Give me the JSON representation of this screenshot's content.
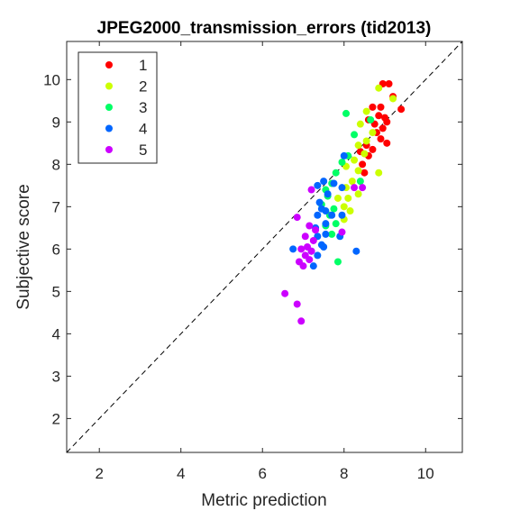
{
  "chart_data": {
    "type": "scatter",
    "title": "JPEG2000_transmission_errors (tid2013)",
    "xlabel": "Metric prediction",
    "ylabel": "Subjective score",
    "xlim": [
      1.2,
      10.9
    ],
    "ylim": [
      1.2,
      10.9
    ],
    "xticks": [
      2,
      4,
      6,
      8,
      10
    ],
    "yticks": [
      2,
      3,
      4,
      5,
      6,
      7,
      8,
      9,
      10
    ],
    "grid": false,
    "legend_position": "top-left",
    "reference_line": "diagonal y = x (dashed)",
    "series": [
      {
        "name": "1",
        "color": "#ff0000",
        "points": [
          [
            8.95,
            9.9
          ],
          [
            9.1,
            9.9
          ],
          [
            9.2,
            9.6
          ],
          [
            9.4,
            9.3
          ],
          [
            8.9,
            9.35
          ],
          [
            8.7,
            9.35
          ],
          [
            9.0,
            9.1
          ],
          [
            8.85,
            9.15
          ],
          [
            9.05,
            9.0
          ],
          [
            8.6,
            9.05
          ],
          [
            8.75,
            8.95
          ],
          [
            8.95,
            8.85
          ],
          [
            8.8,
            8.75
          ],
          [
            8.9,
            8.6
          ],
          [
            9.05,
            8.5
          ],
          [
            8.55,
            8.45
          ],
          [
            8.7,
            8.35
          ],
          [
            8.4,
            8.3
          ],
          [
            8.6,
            8.2
          ],
          [
            8.45,
            8.0
          ],
          [
            8.5,
            7.8
          ]
        ]
      },
      {
        "name": "2",
        "color": "#ccff00",
        "points": [
          [
            8.85,
            9.8
          ],
          [
            8.55,
            9.25
          ],
          [
            8.4,
            8.95
          ],
          [
            8.7,
            8.75
          ],
          [
            8.55,
            8.55
          ],
          [
            8.35,
            8.45
          ],
          [
            8.5,
            8.25
          ],
          [
            8.25,
            8.1
          ],
          [
            8.05,
            7.95
          ],
          [
            8.35,
            7.85
          ],
          [
            8.2,
            7.6
          ],
          [
            8.05,
            7.45
          ],
          [
            8.1,
            7.2
          ],
          [
            8.35,
            7.3
          ],
          [
            7.85,
            7.2
          ],
          [
            8.0,
            7.0
          ],
          [
            8.15,
            6.9
          ],
          [
            8.0,
            6.7
          ],
          [
            8.85,
            7.8
          ],
          [
            9.2,
            9.55
          ]
        ]
      },
      {
        "name": "3",
        "color": "#00ff66",
        "points": [
          [
            8.65,
            9.05
          ],
          [
            8.05,
            9.2
          ],
          [
            8.25,
            8.7
          ],
          [
            8.1,
            8.2
          ],
          [
            7.95,
            8.05
          ],
          [
            7.8,
            7.8
          ],
          [
            7.7,
            7.55
          ],
          [
            7.55,
            7.4
          ],
          [
            7.6,
            7.25
          ],
          [
            7.45,
            7.05
          ],
          [
            7.75,
            6.95
          ],
          [
            7.65,
            6.8
          ],
          [
            7.8,
            6.6
          ],
          [
            7.55,
            6.55
          ],
          [
            7.7,
            6.35
          ],
          [
            7.85,
            5.7
          ],
          [
            8.4,
            7.6
          ]
        ]
      },
      {
        "name": "4",
        "color": "#0066ff",
        "points": [
          [
            8.0,
            8.2
          ],
          [
            7.75,
            7.55
          ],
          [
            7.5,
            7.6
          ],
          [
            7.35,
            7.5
          ],
          [
            7.95,
            7.45
          ],
          [
            7.6,
            7.3
          ],
          [
            7.4,
            7.1
          ],
          [
            7.45,
            6.95
          ],
          [
            7.55,
            6.9
          ],
          [
            7.35,
            6.8
          ],
          [
            7.7,
            6.8
          ],
          [
            7.95,
            6.8
          ],
          [
            7.55,
            6.6
          ],
          [
            7.3,
            6.5
          ],
          [
            7.35,
            6.3
          ],
          [
            7.55,
            6.35
          ],
          [
            7.9,
            6.3
          ],
          [
            7.45,
            6.1
          ],
          [
            7.2,
            5.95
          ],
          [
            7.35,
            5.85
          ],
          [
            6.75,
            6.0
          ],
          [
            7.25,
            5.6
          ],
          [
            8.3,
            5.95
          ],
          [
            7.5,
            6.05
          ]
        ]
      },
      {
        "name": "5",
        "color": "#cc00ff",
        "points": [
          [
            7.2,
            7.4
          ],
          [
            6.85,
            6.75
          ],
          [
            7.15,
            6.55
          ],
          [
            7.3,
            6.45
          ],
          [
            7.05,
            6.3
          ],
          [
            7.25,
            6.2
          ],
          [
            7.1,
            6.05
          ],
          [
            6.95,
            6.0
          ],
          [
            7.2,
            5.95
          ],
          [
            7.05,
            5.85
          ],
          [
            7.15,
            5.75
          ],
          [
            6.9,
            5.7
          ],
          [
            7.0,
            5.6
          ],
          [
            6.55,
            4.95
          ],
          [
            6.85,
            4.7
          ],
          [
            6.95,
            4.3
          ],
          [
            8.25,
            7.45
          ],
          [
            8.45,
            7.45
          ],
          [
            7.95,
            6.4
          ]
        ]
      }
    ]
  }
}
